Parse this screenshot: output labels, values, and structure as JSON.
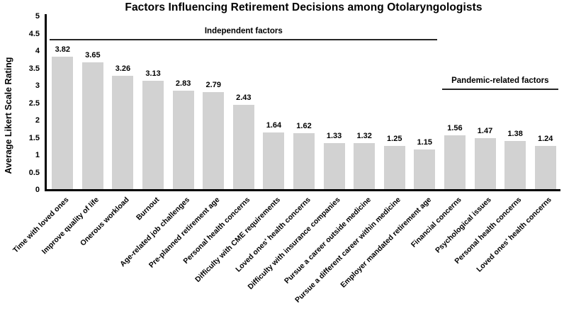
{
  "chart_data": {
    "type": "bar",
    "title": "Factors Influencing Retirement Decisions among Otolaryngologists",
    "ylabel": "Average Likert Scale Rating",
    "xlabel": "",
    "ylim": [
      0,
      5
    ],
    "ytick_step": 0.5,
    "grid": false,
    "legend_position": "none",
    "bar_color": "#d2d2d2",
    "categories": [
      "Time with loved ones",
      "Improve quality of life",
      "Onerous workload",
      "Burnout",
      "Age-related job challenges",
      "Pre-planned retirement age",
      "Personal health concerns",
      "Difficulty with CME requirements",
      "Loved ones' health concerns",
      "Difficulty with insurance companies",
      "Pursue a career outside medicine",
      "Pursue a different career within medicine",
      "Employer mandated retirement age",
      "Financial concerns",
      "Psychological issues",
      "Personal health concerns",
      "Loved ones' health concerns"
    ],
    "values": [
      3.82,
      3.65,
      3.26,
      3.13,
      2.83,
      2.79,
      2.43,
      1.64,
      1.62,
      1.33,
      1.32,
      1.25,
      1.15,
      1.56,
      1.47,
      1.38,
      1.24
    ],
    "annotations": [
      {
        "label": "Independent factors",
        "start_index": 0,
        "end_index": 12
      },
      {
        "label": "Pandemic-related factors",
        "start_index": 13,
        "end_index": 16
      }
    ]
  }
}
